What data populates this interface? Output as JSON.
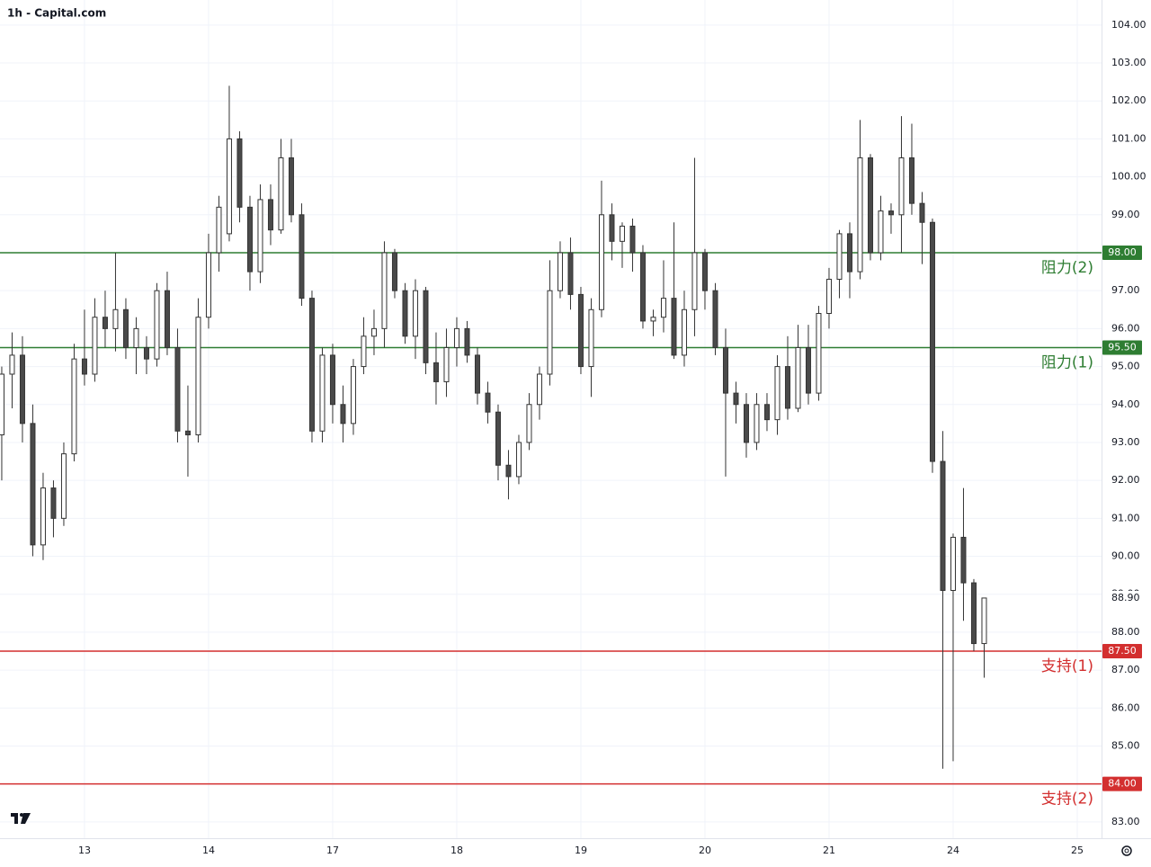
{
  "chart_data": {
    "type": "candlestick",
    "title": "1h - Capital.com",
    "ylim": [
      82.57,
      104.66
    ],
    "yticks": [
      {
        "value": 83,
        "label": "83.00"
      },
      {
        "value": 84,
        "label": "84.00"
      },
      {
        "value": 85,
        "label": "85.00"
      },
      {
        "value": 86,
        "label": "86.00"
      },
      {
        "value": 87,
        "label": "87.00"
      },
      {
        "value": 88,
        "label": "88.00"
      },
      {
        "value": 89,
        "label": "89.00"
      },
      {
        "value": 90,
        "label": "90.00"
      },
      {
        "value": 91,
        "label": "91.00"
      },
      {
        "value": 92,
        "label": "92.00"
      },
      {
        "value": 93,
        "label": "93.00"
      },
      {
        "value": 94,
        "label": "94.00"
      },
      {
        "value": 95,
        "label": "95.00"
      },
      {
        "value": 96,
        "label": "96.00"
      },
      {
        "value": 97,
        "label": "97.00"
      },
      {
        "value": 98,
        "label": "98.00"
      },
      {
        "value": 99,
        "label": "99.00"
      },
      {
        "value": 100,
        "label": "100.00"
      },
      {
        "value": 101,
        "label": "101.00"
      },
      {
        "value": 102,
        "label": "102.00"
      },
      {
        "value": 103,
        "label": "103.00"
      },
      {
        "value": 104,
        "label": "104.00"
      }
    ],
    "xlim": [
      -0.17,
      106.35
    ],
    "xticks": [
      {
        "value": 8,
        "label": "13"
      },
      {
        "value": 20,
        "label": "14"
      },
      {
        "value": 32,
        "label": "17"
      },
      {
        "value": 44,
        "label": "18"
      },
      {
        "value": 56,
        "label": "19"
      },
      {
        "value": 68,
        "label": "20"
      },
      {
        "value": 80,
        "label": "21"
      },
      {
        "value": 92,
        "label": "24"
      },
      {
        "value": 104,
        "label": "25"
      }
    ],
    "grid": true,
    "up_color": "#ffffff",
    "down_color": "#4a4a4a",
    "wick_color": "#333333",
    "candles": [
      [
        93.2,
        95.0,
        92.0,
        94.8
      ],
      [
        94.8,
        95.9,
        93.9,
        95.3
      ],
      [
        95.3,
        95.8,
        93.0,
        93.5
      ],
      [
        93.5,
        94.0,
        90.0,
        90.3
      ],
      [
        90.3,
        92.2,
        89.9,
        91.8
      ],
      [
        91.8,
        92.0,
        90.5,
        91.0
      ],
      [
        91.0,
        93.0,
        90.8,
        92.7
      ],
      [
        92.7,
        95.6,
        92.5,
        95.2
      ],
      [
        95.2,
        96.5,
        94.5,
        94.8
      ],
      [
        94.8,
        96.8,
        94.6,
        96.3
      ],
      [
        96.3,
        97.0,
        95.5,
        96.0
      ],
      [
        96.0,
        98.0,
        95.4,
        96.5
      ],
      [
        96.5,
        96.8,
        95.2,
        95.5
      ],
      [
        95.5,
        96.3,
        94.8,
        96.0
      ],
      [
        95.5,
        95.8,
        94.8,
        95.2
      ],
      [
        95.2,
        97.2,
        95.0,
        97.0
      ],
      [
        97.0,
        97.5,
        95.3,
        95.5
      ],
      [
        95.5,
        96.0,
        93.0,
        93.3
      ],
      [
        93.3,
        94.5,
        92.1,
        93.2
      ],
      [
        93.2,
        96.8,
        93.0,
        96.3
      ],
      [
        96.3,
        98.5,
        96.0,
        98.0
      ],
      [
        98.0,
        99.5,
        97.5,
        99.2
      ],
      [
        98.5,
        102.4,
        98.3,
        101.0
      ],
      [
        101.0,
        101.2,
        98.8,
        99.2
      ],
      [
        99.2,
        99.5,
        97.0,
        97.5
      ],
      [
        97.5,
        99.8,
        97.2,
        99.4
      ],
      [
        99.4,
        99.8,
        98.2,
        98.6
      ],
      [
        98.6,
        101.0,
        98.5,
        100.5
      ],
      [
        100.5,
        101.0,
        98.8,
        99.0
      ],
      [
        99.0,
        99.3,
        96.6,
        96.8
      ],
      [
        96.8,
        97.0,
        93.0,
        93.3
      ],
      [
        93.3,
        95.5,
        93.0,
        95.3
      ],
      [
        95.3,
        95.6,
        93.5,
        94.0
      ],
      [
        94.0,
        94.5,
        93.0,
        93.5
      ],
      [
        93.5,
        95.2,
        93.2,
        95.0
      ],
      [
        95.0,
        96.3,
        94.8,
        95.8
      ],
      [
        95.8,
        96.5,
        95.3,
        96.0
      ],
      [
        96.0,
        98.3,
        95.5,
        98.0
      ],
      [
        98.0,
        98.1,
        96.8,
        97.0
      ],
      [
        97.0,
        97.2,
        95.6,
        95.8
      ],
      [
        95.8,
        97.3,
        95.2,
        97.0
      ],
      [
        97.0,
        97.1,
        94.8,
        95.1
      ],
      [
        95.1,
        95.9,
        94.0,
        94.6
      ],
      [
        94.6,
        96.0,
        94.2,
        95.5
      ],
      [
        95.5,
        96.3,
        95.0,
        96.0
      ],
      [
        96.0,
        96.2,
        95.1,
        95.3
      ],
      [
        95.3,
        95.5,
        94.0,
        94.3
      ],
      [
        94.3,
        94.6,
        93.5,
        93.8
      ],
      [
        93.8,
        94.0,
        92.0,
        92.4
      ],
      [
        92.4,
        92.8,
        91.5,
        92.1
      ],
      [
        92.1,
        93.2,
        91.9,
        93.0
      ],
      [
        93.0,
        94.3,
        92.8,
        94.0
      ],
      [
        94.0,
        95.0,
        93.6,
        94.8
      ],
      [
        94.8,
        97.8,
        94.5,
        97.0
      ],
      [
        97.0,
        98.3,
        96.8,
        98.0
      ],
      [
        98.0,
        98.4,
        96.5,
        96.9
      ],
      [
        96.9,
        97.1,
        94.8,
        95.0
      ],
      [
        95.0,
        96.8,
        94.2,
        96.5
      ],
      [
        96.5,
        99.9,
        96.3,
        99.0
      ],
      [
        99.0,
        99.3,
        97.8,
        98.3
      ],
      [
        98.3,
        98.8,
        97.6,
        98.7
      ],
      [
        98.7,
        98.9,
        97.5,
        98.0
      ],
      [
        98.0,
        98.2,
        96.0,
        96.2
      ],
      [
        96.2,
        96.5,
        95.8,
        96.3
      ],
      [
        96.3,
        97.8,
        95.9,
        96.8
      ],
      [
        96.8,
        98.8,
        95.2,
        95.3
      ],
      [
        95.3,
        97.0,
        95.0,
        96.5
      ],
      [
        96.5,
        100.5,
        95.8,
        98.0
      ],
      [
        98.0,
        98.1,
        96.5,
        97.0
      ],
      [
        97.0,
        97.2,
        95.3,
        95.5
      ],
      [
        95.5,
        96.0,
        92.1,
        94.3
      ],
      [
        94.3,
        94.6,
        93.5,
        94.0
      ],
      [
        94.0,
        94.3,
        92.6,
        93.0
      ],
      [
        93.0,
        94.3,
        92.8,
        94.0
      ],
      [
        94.0,
        94.3,
        93.3,
        93.6
      ],
      [
        93.6,
        95.3,
        93.2,
        95.0
      ],
      [
        95.0,
        95.8,
        93.6,
        93.9
      ],
      [
        93.9,
        96.1,
        93.8,
        95.5
      ],
      [
        95.5,
        96.1,
        94.0,
        94.3
      ],
      [
        94.3,
        96.6,
        94.1,
        96.4
      ],
      [
        96.4,
        97.6,
        96.0,
        97.3
      ],
      [
        97.3,
        98.6,
        96.8,
        98.5
      ],
      [
        98.5,
        98.8,
        96.8,
        97.5
      ],
      [
        97.5,
        101.5,
        97.3,
        100.5
      ],
      [
        100.5,
        100.6,
        97.8,
        98.0
      ],
      [
        98.0,
        99.5,
        97.8,
        99.1
      ],
      [
        99.1,
        99.3,
        98.5,
        99.0
      ],
      [
        99.0,
        101.6,
        98.0,
        100.5
      ],
      [
        100.5,
        101.4,
        99.0,
        99.3
      ],
      [
        99.3,
        99.6,
        97.7,
        98.8
      ],
      [
        98.8,
        98.9,
        92.2,
        92.5
      ],
      [
        92.5,
        93.3,
        84.4,
        89.1
      ],
      [
        89.1,
        90.6,
        84.6,
        90.5
      ],
      [
        90.5,
        91.8,
        88.3,
        89.3
      ],
      [
        89.3,
        89.4,
        87.5,
        87.7
      ],
      [
        87.7,
        88.9,
        86.8,
        88.9
      ]
    ],
    "levels": [
      {
        "value": 98,
        "label": "98.00",
        "text": "阻力(2)",
        "color": "#2e7d32"
      },
      {
        "value": 95.5,
        "label": "95.50",
        "text": "阻力(1)",
        "color": "#2e7d32"
      },
      {
        "value": 87.5,
        "label": "87.50",
        "text": "支持(1)",
        "color": "#d32f2f"
      },
      {
        "value": 84,
        "label": "84.00",
        "text": "支持(2)",
        "color": "#d32f2f"
      }
    ],
    "last_price": {
      "value": 88.9,
      "label": "88.90"
    }
  }
}
